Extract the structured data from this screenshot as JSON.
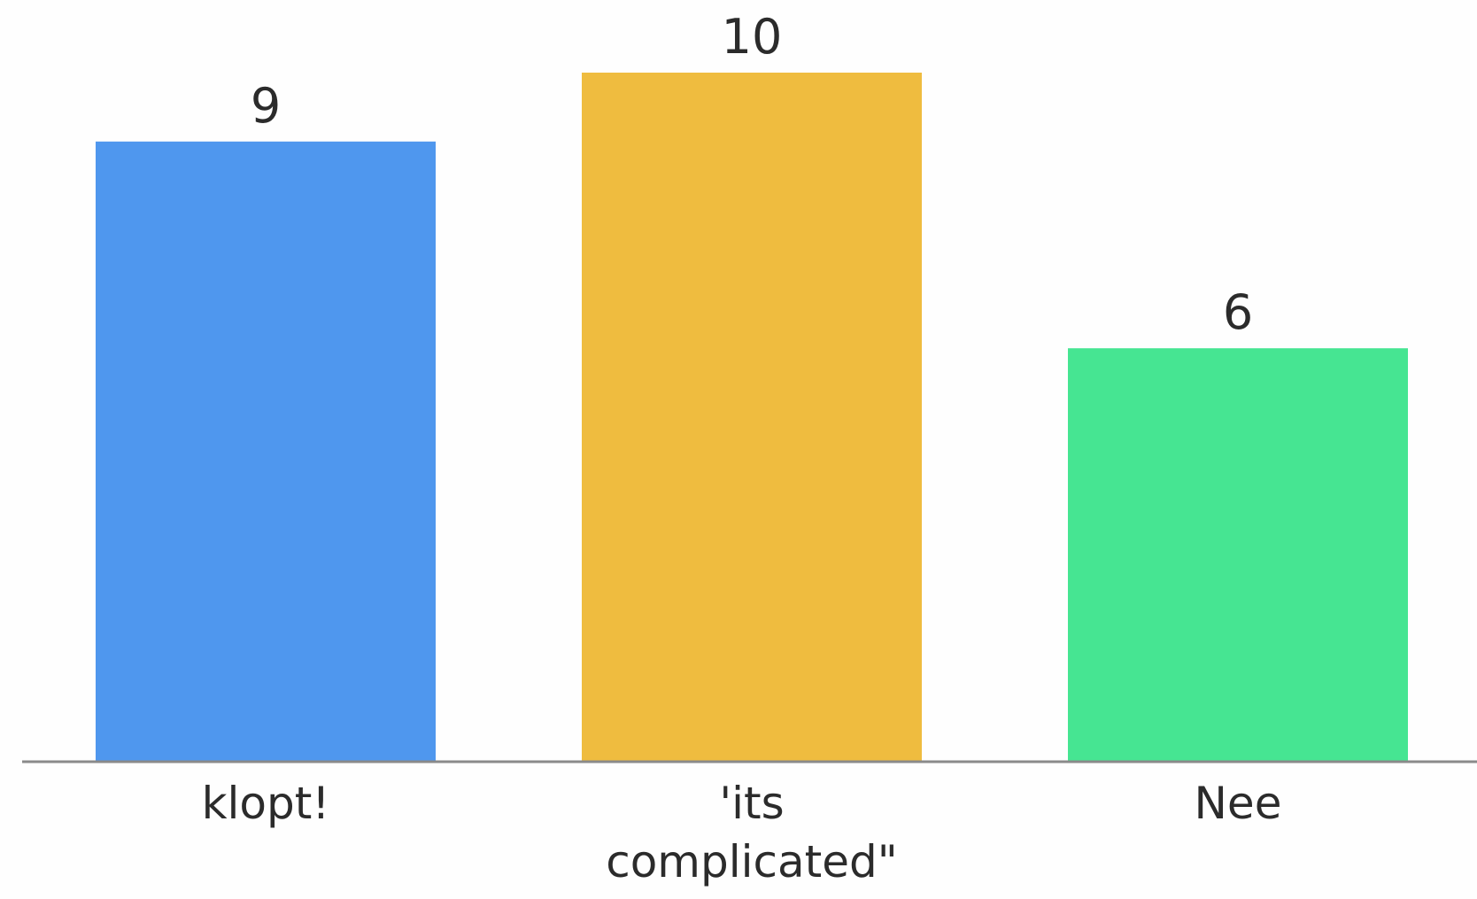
{
  "chart_data": {
    "type": "bar",
    "categories": [
      [
        "klopt!"
      ],
      [
        "'its",
        "complicated\""
      ],
      [
        "Nee"
      ]
    ],
    "values": [
      9,
      10,
      6
    ],
    "data_labels": [
      "9",
      "10",
      "6"
    ],
    "colors": [
      "#4f97ee",
      "#efbc3f",
      "#46e592"
    ],
    "axis_color": "#8a8a8a",
    "ylim": [
      0,
      10
    ],
    "grid": false,
    "legend": "none"
  }
}
